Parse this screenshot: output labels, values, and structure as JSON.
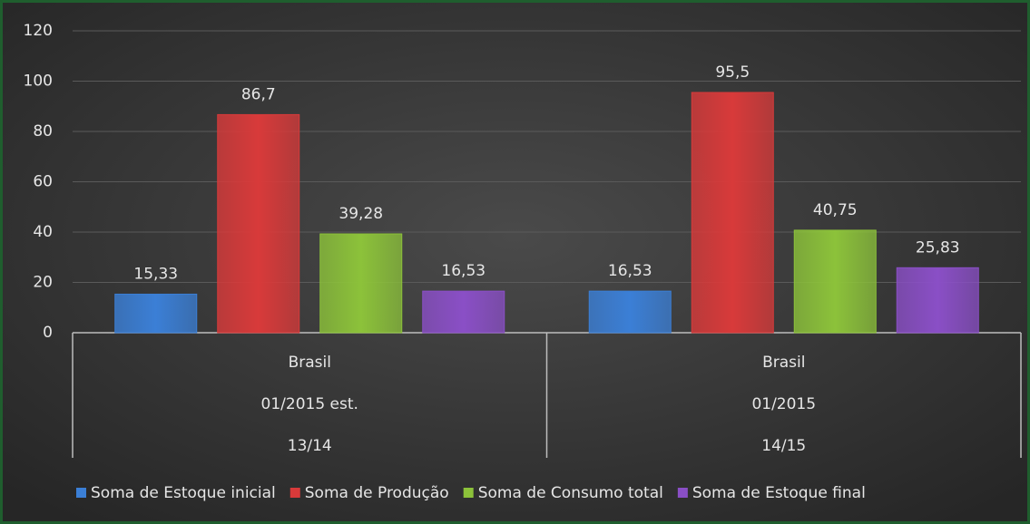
{
  "chart_data": {
    "type": "bar",
    "categories": [
      [
        "Brasil",
        "01/2015 est.",
        "13/14"
      ],
      [
        "Brasil",
        "01/2015",
        "14/15"
      ]
    ],
    "series": [
      {
        "name": "Soma de Estoque inicial",
        "color": "#3b7fd6",
        "values": [
          15.33,
          16.53
        ],
        "value_labels": [
          "15,33",
          "16,53"
        ]
      },
      {
        "name": "Soma de Produção",
        "color": "#d83a3a",
        "values": [
          86.7,
          95.5
        ],
        "value_labels": [
          "86,7",
          "95,5"
        ]
      },
      {
        "name": "Soma de Consumo total",
        "color": "#8cc23a",
        "values": [
          39.28,
          40.75
        ],
        "value_labels": [
          "39,28",
          "40,75"
        ]
      },
      {
        "name": "Soma de Estoque final",
        "color": "#8a4fc6",
        "values": [
          16.53,
          25.83
        ],
        "value_labels": [
          "16,53",
          "25,83"
        ]
      }
    ],
    "ylim": [
      0,
      120
    ],
    "yticks": [
      0,
      20,
      40,
      60,
      80,
      100,
      120
    ],
    "grid": true,
    "legend": "bottom"
  }
}
